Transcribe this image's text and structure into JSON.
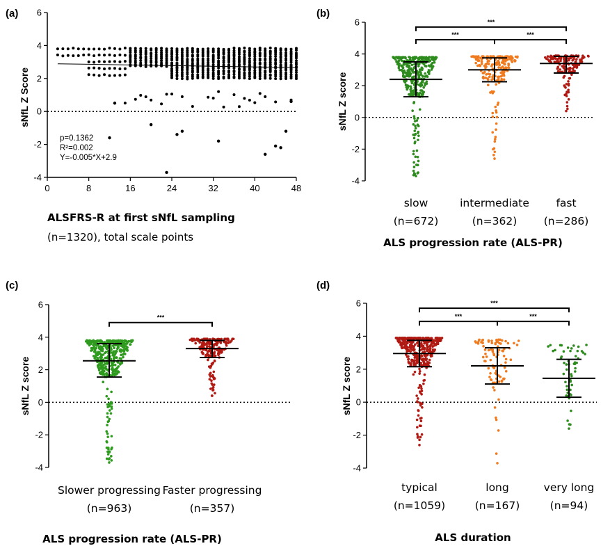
{
  "chart_data": [
    {
      "panel": "(a)",
      "type": "scatter",
      "ylabel": "sNfL Z Score",
      "xlabel": "ALSFRS-R at first sNfL sampling",
      "xlabel_note": "(n=1320), total scale points",
      "xlim": [
        0,
        48
      ],
      "ylim": [
        -4,
        6
      ],
      "xticks": [
        0,
        8,
        16,
        24,
        32,
        40,
        48
      ],
      "yticks": [
        -4,
        -2,
        0,
        2,
        4,
        6
      ],
      "reference_line_y": 0,
      "regression": {
        "slope": -0.005,
        "intercept": 2.9
      },
      "stats": [
        "p=0.1362",
        "R²=0.002",
        "Y=-0.005*X+2.9"
      ],
      "outliers": [
        {
          "x": 23,
          "y": -3.7
        },
        {
          "x": 33,
          "y": -1.8
        },
        {
          "x": 42,
          "y": -2.6
        },
        {
          "x": 44,
          "y": -2.1
        },
        {
          "x": 45,
          "y": -2.2
        },
        {
          "x": 12,
          "y": -1.6
        },
        {
          "x": 20,
          "y": -0.8
        },
        {
          "x": 26,
          "y": -1.2
        },
        {
          "x": 25,
          "y": -1.4
        },
        {
          "x": 46,
          "y": -1.2
        },
        {
          "x": 47,
          "y": 0.6
        },
        {
          "x": 13,
          "y": 0.5
        }
      ]
    },
    {
      "panel": "(b)",
      "type": "scatter",
      "ylabel": "sNfL Z score",
      "xlabel": "ALS progression rate (ALS-PR)",
      "ylim": [
        -4,
        6
      ],
      "yticks": [
        -4,
        -2,
        0,
        2,
        4,
        6
      ],
      "reference_line_y": 0,
      "groups": [
        {
          "label": "slow",
          "n": "(n=672)",
          "color": "#2e8b1e",
          "mean": 2.4,
          "sd_low": 1.3,
          "sd_high": 3.5,
          "min": -3.7,
          "max": 3.8
        },
        {
          "label": "intermediate",
          "n": "(n=362)",
          "color": "#f07a1e",
          "mean": 3.0,
          "sd_low": 2.25,
          "sd_high": 3.75,
          "min": -2.6,
          "max": 3.85
        },
        {
          "label": "fast",
          "n": "(n=286)",
          "color": "#b01a12",
          "mean": 3.4,
          "sd_low": 2.8,
          "sd_high": 3.85,
          "min": 0.4,
          "max": 3.9
        }
      ],
      "significance": [
        {
          "from": 0,
          "to": 2,
          "label": "***"
        },
        {
          "from": 0,
          "to": 1,
          "label": "***"
        },
        {
          "from": 1,
          "to": 2,
          "label": "***"
        }
      ]
    },
    {
      "panel": "(c)",
      "type": "scatter",
      "ylabel": "sNfL Z score",
      "xlabel": "ALS progression rate (ALS-PR)",
      "ylim": [
        -4,
        6
      ],
      "yticks": [
        -4,
        -2,
        0,
        2,
        4,
        6
      ],
      "reference_line_y": 0,
      "groups": [
        {
          "label": "Slower progressing",
          "n": "(n=963)",
          "color": "#2e9a1e",
          "mean": 2.55,
          "sd_low": 1.55,
          "sd_high": 3.6,
          "min": -3.7,
          "max": 3.8
        },
        {
          "label": "Faster progressing",
          "n": "(n=357)",
          "color": "#b01a12",
          "mean": 3.3,
          "sd_low": 2.75,
          "sd_high": 3.8,
          "min": 0.4,
          "max": 3.9
        }
      ],
      "significance": [
        {
          "from": 0,
          "to": 1,
          "label": "***"
        }
      ]
    },
    {
      "panel": "(d)",
      "type": "scatter",
      "ylabel": "sNfL Z score",
      "xlabel": "ALS duration",
      "ylim": [
        -4,
        6
      ],
      "yticks": [
        -4,
        -2,
        0,
        2,
        4,
        6
      ],
      "reference_line_y": 0,
      "groups": [
        {
          "label": "typical",
          "n": "(n=1059)",
          "color": "#b01a12",
          "mean": 2.95,
          "sd_low": 2.15,
          "sd_high": 3.75,
          "min": -2.6,
          "max": 3.9
        },
        {
          "label": "long",
          "n": "(n=167)",
          "color": "#f07a1e",
          "mean": 2.2,
          "sd_low": 1.1,
          "sd_high": 3.3,
          "min": -3.7,
          "max": 3.8
        },
        {
          "label": "very long",
          "n": "(n=94)",
          "color": "#2e8b1e",
          "mean": 1.45,
          "sd_low": 0.3,
          "sd_high": 2.6,
          "min": -1.6,
          "max": 3.5
        }
      ],
      "significance": [
        {
          "from": 0,
          "to": 2,
          "label": "***"
        },
        {
          "from": 0,
          "to": 1,
          "label": "***"
        },
        {
          "from": 1,
          "to": 2,
          "label": "***"
        }
      ]
    }
  ]
}
